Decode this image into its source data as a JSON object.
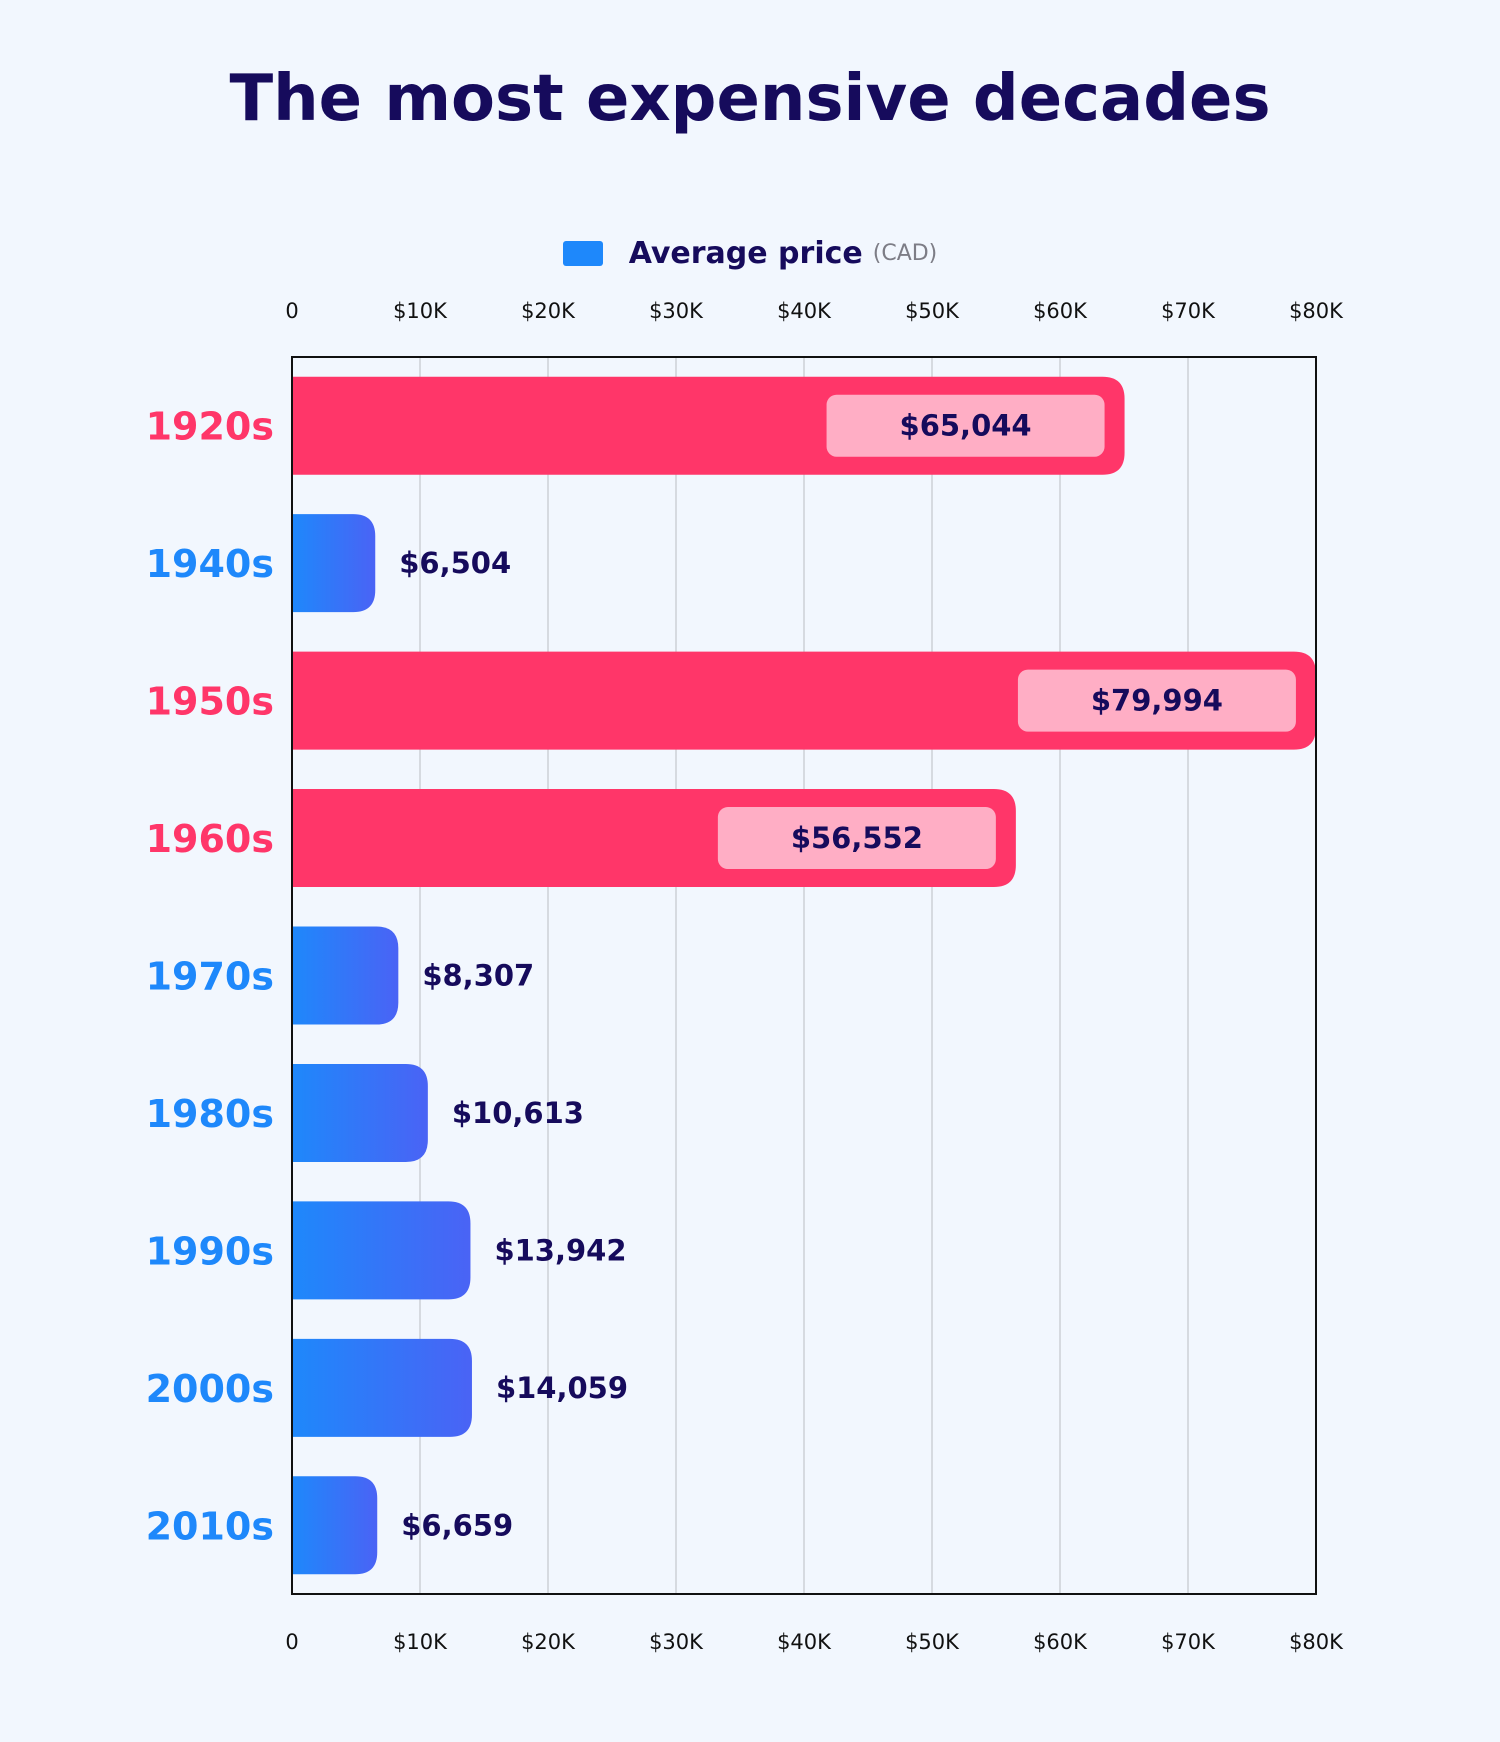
{
  "chart_data": {
    "type": "bar",
    "orientation": "horizontal",
    "title": "The most expensive decades",
    "legend": {
      "label": "Average price",
      "unit": "(CAD)",
      "color": "#1e88fb",
      "placement": "top-center"
    },
    "xlim": [
      0,
      80000
    ],
    "ticks": [
      0,
      10000,
      20000,
      30000,
      40000,
      50000,
      60000,
      70000,
      80000
    ],
    "tick_labels": [
      "0",
      "$10K",
      "$20K",
      "$30K",
      "$40K",
      "$50K",
      "$60K",
      "$70K",
      "$80K"
    ],
    "grid": true,
    "categories": [
      "1920s",
      "1940s",
      "1950s",
      "1960s",
      "1970s",
      "1980s",
      "1990s",
      "2000s",
      "2010s"
    ],
    "values": [
      65044,
      6504,
      79994,
      56552,
      8307,
      10613,
      13942,
      14059,
      6659
    ],
    "value_labels": [
      "$65,044",
      "$6,504",
      "$79,994",
      "$56,552",
      "$8,307",
      "$10,613",
      "$13,942",
      "$14,059",
      "$6,659"
    ],
    "highlighted": [
      true,
      false,
      true,
      true,
      false,
      false,
      false,
      false,
      false
    ],
    "colors": {
      "normal_start": "#1e88fb",
      "normal_end": "#4a63f5",
      "highlight": "#ff3669",
      "highlight_label_bg": "#ffaec5",
      "highlight_text": "#ff3669",
      "normal_text": "#1e88fb",
      "value_text": "#160b5c",
      "grid": "#cdd0d6",
      "axis": "#111111"
    }
  }
}
